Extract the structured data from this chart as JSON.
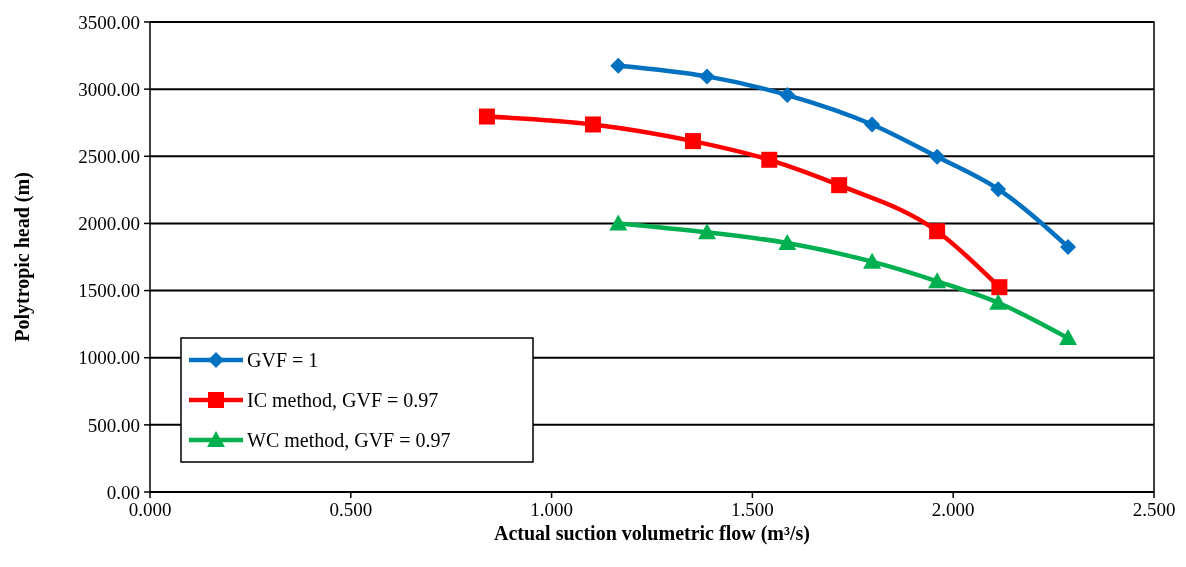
{
  "chart_data": {
    "type": "line",
    "xlabel": "Actual suction volumetric flow (m³/s)",
    "ylabel": "Polytropic head (m)",
    "xlim": [
      0,
      2.5
    ],
    "xticks": [
      {
        "value": 0,
        "label": "0.000"
      },
      {
        "value": 0.5,
        "label": "0.500"
      },
      {
        "value": 1,
        "label": "1.000"
      },
      {
        "value": 1.5,
        "label": "1.500"
      },
      {
        "value": 2,
        "label": "2.000"
      },
      {
        "value": 2.5,
        "label": "2.500"
      }
    ],
    "ylim": [
      0,
      3500
    ],
    "yticks": [
      {
        "value": 0,
        "label": "0.00"
      },
      {
        "value": 500,
        "label": "500.00"
      },
      {
        "value": 1000,
        "label": "1000.00"
      },
      {
        "value": 1500,
        "label": "1500.00"
      },
      {
        "value": 2000,
        "label": "2000.00"
      },
      {
        "value": 2500,
        "label": "2500.00"
      },
      {
        "value": 3000,
        "label": "3000.00"
      },
      {
        "value": 3500,
        "label": "3500.00"
      }
    ],
    "grid": "y",
    "legend": "bottom left",
    "line_style": "solid",
    "series": [
      {
        "name": "GVF = 1",
        "color": "#0070c0",
        "marker": "diamond",
        "x": [
          1.166,
          1.387,
          1.587,
          1.798,
          1.96,
          2.112,
          2.286
        ],
        "values": [
          3175,
          3095,
          2956,
          2737,
          2496,
          2255,
          1825
        ]
      },
      {
        "name": "IC method, GVF = 0.97",
        "color": "#ff0000",
        "marker": "square",
        "x": [
          0.839,
          1.103,
          1.352,
          1.542,
          1.716,
          1.96,
          2.115
        ],
        "values": [
          2796,
          2737,
          2613,
          2474,
          2285,
          1942,
          1525
        ]
      },
      {
        "name": "WC method, GVF = 0.97",
        "color": "#00b050",
        "marker": "triangle",
        "x": [
          1.166,
          1.387,
          1.587,
          1.798,
          1.96,
          2.112,
          2.286
        ],
        "values": [
          2000,
          1934,
          1854,
          1715,
          1569,
          1409,
          1146
        ]
      }
    ]
  }
}
